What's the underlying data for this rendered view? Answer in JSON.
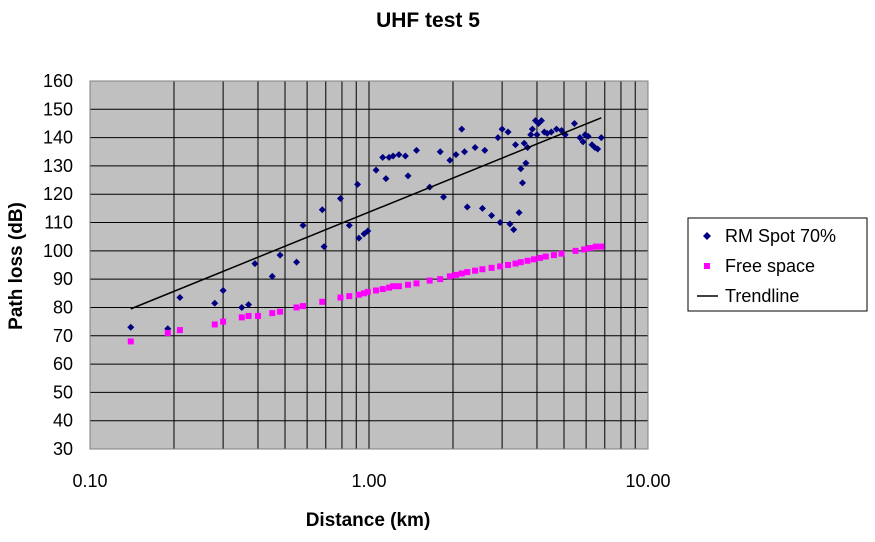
{
  "chart_data": {
    "type": "scatter",
    "title": "UHF test 5",
    "xlabel": "Distance (km)",
    "ylabel": "Path loss (dB)",
    "x_scale": "log",
    "xlim": [
      0.1,
      10
    ],
    "ylim": [
      30,
      160
    ],
    "x_ticks": [
      "0.10",
      "1.00",
      "10.00"
    ],
    "y_ticks": [
      "30",
      "40",
      "50",
      "60",
      "70",
      "80",
      "90",
      "100",
      "110",
      "120",
      "130",
      "140",
      "150",
      "160"
    ],
    "grid": true,
    "plot_background": "#c0c0c0",
    "legend_position": "right",
    "series": [
      {
        "name": "RM Spot 70%",
        "marker": "diamond",
        "color": "#000080",
        "points": [
          [
            0.14,
            73
          ],
          [
            0.19,
            72.5
          ],
          [
            0.21,
            83.5
          ],
          [
            0.28,
            81.5
          ],
          [
            0.3,
            86
          ],
          [
            0.35,
            80
          ],
          [
            0.37,
            81
          ],
          [
            0.39,
            95.5
          ],
          [
            0.45,
            91
          ],
          [
            0.48,
            98.5
          ],
          [
            0.55,
            96
          ],
          [
            0.58,
            109
          ],
          [
            0.68,
            114.5
          ],
          [
            0.69,
            101.5
          ],
          [
            0.79,
            118.5
          ],
          [
            0.85,
            109
          ],
          [
            0.91,
            123.5
          ],
          [
            0.92,
            104.5
          ],
          [
            0.96,
            106
          ],
          [
            0.99,
            107
          ],
          [
            1.06,
            128.5
          ],
          [
            1.12,
            133
          ],
          [
            1.15,
            125.5
          ],
          [
            1.18,
            133
          ],
          [
            1.22,
            133.5
          ],
          [
            1.28,
            134
          ],
          [
            1.35,
            133.5
          ],
          [
            1.38,
            126.5
          ],
          [
            1.48,
            135.5
          ],
          [
            1.65,
            122.5
          ],
          [
            1.8,
            135
          ],
          [
            1.85,
            119
          ],
          [
            1.95,
            132
          ],
          [
            2.05,
            134
          ],
          [
            2.15,
            143
          ],
          [
            2.2,
            135
          ],
          [
            2.25,
            115.5
          ],
          [
            2.4,
            136.5
          ],
          [
            2.55,
            115
          ],
          [
            2.6,
            135.5
          ],
          [
            2.75,
            112.5
          ],
          [
            2.9,
            140
          ],
          [
            2.95,
            110
          ],
          [
            3.0,
            143
          ],
          [
            3.15,
            142
          ],
          [
            3.2,
            109.5
          ],
          [
            3.3,
            107.5
          ],
          [
            3.35,
            137.5
          ],
          [
            3.45,
            113.5
          ],
          [
            3.5,
            129
          ],
          [
            3.55,
            124
          ],
          [
            3.6,
            138
          ],
          [
            3.65,
            131
          ],
          [
            3.7,
            136.5
          ],
          [
            3.8,
            141
          ],
          [
            3.85,
            143
          ],
          [
            3.95,
            146
          ],
          [
            4.0,
            141
          ],
          [
            4.05,
            145
          ],
          [
            4.15,
            146
          ],
          [
            4.25,
            142
          ],
          [
            4.35,
            141.5
          ],
          [
            4.5,
            142
          ],
          [
            4.7,
            143
          ],
          [
            4.9,
            142.5
          ],
          [
            5.05,
            141
          ],
          [
            5.45,
            145
          ],
          [
            5.7,
            140
          ],
          [
            5.85,
            138.5
          ],
          [
            5.95,
            141
          ],
          [
            6.1,
            140.5
          ],
          [
            6.3,
            137.5
          ],
          [
            6.45,
            136.5
          ],
          [
            6.6,
            136
          ],
          [
            6.8,
            140
          ]
        ]
      },
      {
        "name": "Free space",
        "marker": "square",
        "color": "#ff00ff",
        "points": [
          [
            0.14,
            68
          ],
          [
            0.19,
            71
          ],
          [
            0.21,
            72
          ],
          [
            0.28,
            74
          ],
          [
            0.3,
            75
          ],
          [
            0.35,
            76.5
          ],
          [
            0.37,
            77
          ],
          [
            0.4,
            77
          ],
          [
            0.45,
            78
          ],
          [
            0.48,
            78.5
          ],
          [
            0.55,
            80
          ],
          [
            0.58,
            80.5
          ],
          [
            0.68,
            82
          ],
          [
            0.79,
            83.5
          ],
          [
            0.85,
            84
          ],
          [
            0.92,
            84.5
          ],
          [
            0.96,
            85
          ],
          [
            0.99,
            85.5
          ],
          [
            1.06,
            86
          ],
          [
            1.12,
            86.5
          ],
          [
            1.18,
            87
          ],
          [
            1.22,
            87.5
          ],
          [
            1.28,
            87.5
          ],
          [
            1.38,
            88
          ],
          [
            1.48,
            88.5
          ],
          [
            1.65,
            89.5
          ],
          [
            1.8,
            90
          ],
          [
            1.95,
            91
          ],
          [
            2.05,
            91.5
          ],
          [
            2.15,
            92
          ],
          [
            2.25,
            92.5
          ],
          [
            2.4,
            93
          ],
          [
            2.55,
            93.5
          ],
          [
            2.75,
            94
          ],
          [
            2.95,
            94.5
          ],
          [
            3.15,
            95
          ],
          [
            3.35,
            95.5
          ],
          [
            3.5,
            96
          ],
          [
            3.7,
            96.5
          ],
          [
            3.9,
            97
          ],
          [
            4.1,
            97.5
          ],
          [
            4.3,
            98
          ],
          [
            4.6,
            98.5
          ],
          [
            4.9,
            99
          ],
          [
            5.5,
            100
          ],
          [
            5.9,
            100.5
          ],
          [
            6.2,
            101
          ],
          [
            6.5,
            101.5
          ],
          [
            6.8,
            101.5
          ]
        ]
      },
      {
        "name": "Trendline",
        "line": true,
        "color": "#000000",
        "points": [
          [
            0.14,
            79.5
          ],
          [
            6.8,
            147
          ]
        ]
      }
    ]
  }
}
